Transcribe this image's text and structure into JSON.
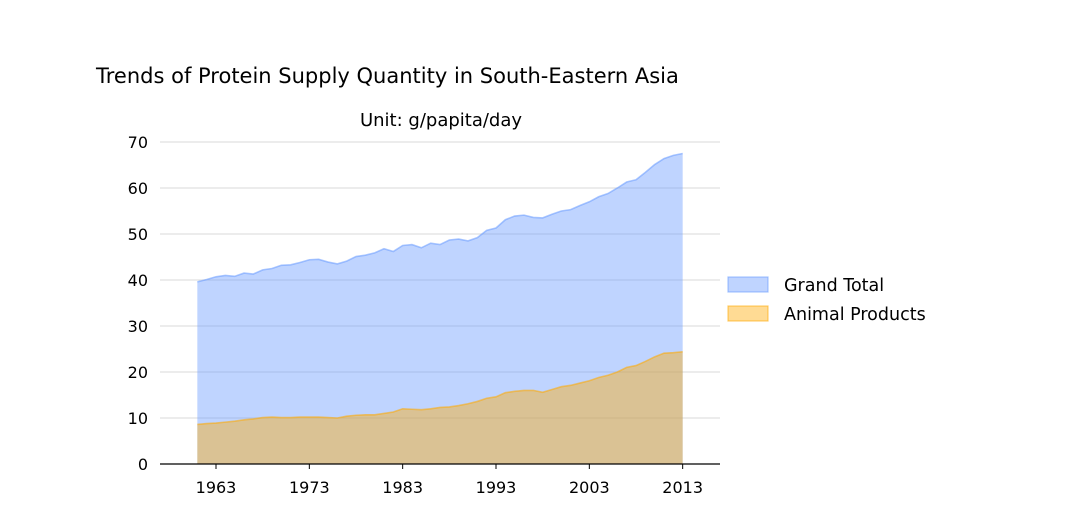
{
  "chart_data": {
    "type": "area",
    "title": "Trends of Protein Supply Quantity in South-Eastern Asia",
    "subtitle": "Unit: g/papita/day",
    "xlabel": "",
    "ylabel": "",
    "xlim": [
      1957,
      2017
    ],
    "ylim": [
      0,
      70
    ],
    "x_ticks": [
      1963,
      1973,
      1983,
      1993,
      2003,
      2013
    ],
    "y_ticks": [
      0,
      10,
      20,
      30,
      40,
      50,
      60,
      70
    ],
    "grid": "horizontal",
    "legend_position": "right",
    "x": [
      1961,
      1962,
      1963,
      1964,
      1965,
      1966,
      1967,
      1968,
      1969,
      1970,
      1971,
      1972,
      1973,
      1974,
      1975,
      1976,
      1977,
      1978,
      1979,
      1980,
      1981,
      1982,
      1983,
      1984,
      1985,
      1986,
      1987,
      1988,
      1989,
      1990,
      1991,
      1992,
      1993,
      1994,
      1995,
      1996,
      1997,
      1998,
      1999,
      2000,
      2001,
      2002,
      2003,
      2004,
      2005,
      2006,
      2007,
      2008,
      2009,
      2010,
      2011,
      2012,
      2013
    ],
    "series": [
      {
        "name": "Grand Total",
        "color": "#6699ff",
        "values": [
          39.6,
          40.1,
          40.7,
          41.0,
          40.8,
          41.5,
          41.3,
          42.2,
          42.5,
          43.2,
          43.3,
          43.8,
          44.4,
          44.5,
          43.9,
          43.5,
          44.1,
          45.1,
          45.4,
          45.9,
          46.8,
          46.2,
          47.5,
          47.7,
          47.0,
          48.0,
          47.7,
          48.7,
          48.9,
          48.5,
          49.2,
          50.8,
          51.3,
          53.1,
          53.9,
          54.1,
          53.6,
          53.5,
          54.3,
          55.0,
          55.3,
          56.2,
          57.0,
          58.1,
          58.8,
          60.0,
          61.3,
          61.8,
          63.4,
          65.1,
          66.4,
          67.1,
          67.5
        ]
      },
      {
        "name": "Animal Products",
        "color": "#ffaa00",
        "values": [
          8.6,
          8.8,
          8.9,
          9.1,
          9.3,
          9.6,
          9.8,
          10.1,
          10.2,
          10.1,
          10.1,
          10.2,
          10.2,
          10.2,
          10.1,
          10.0,
          10.4,
          10.6,
          10.7,
          10.7,
          11.0,
          11.3,
          12.0,
          11.9,
          11.8,
          12.0,
          12.3,
          12.4,
          12.7,
          13.1,
          13.6,
          14.3,
          14.6,
          15.5,
          15.8,
          16.0,
          16.0,
          15.6,
          16.2,
          16.8,
          17.1,
          17.6,
          18.1,
          18.8,
          19.3,
          20.0,
          21.0,
          21.4,
          22.3,
          23.3,
          24.1,
          24.2,
          24.4
        ]
      }
    ]
  }
}
